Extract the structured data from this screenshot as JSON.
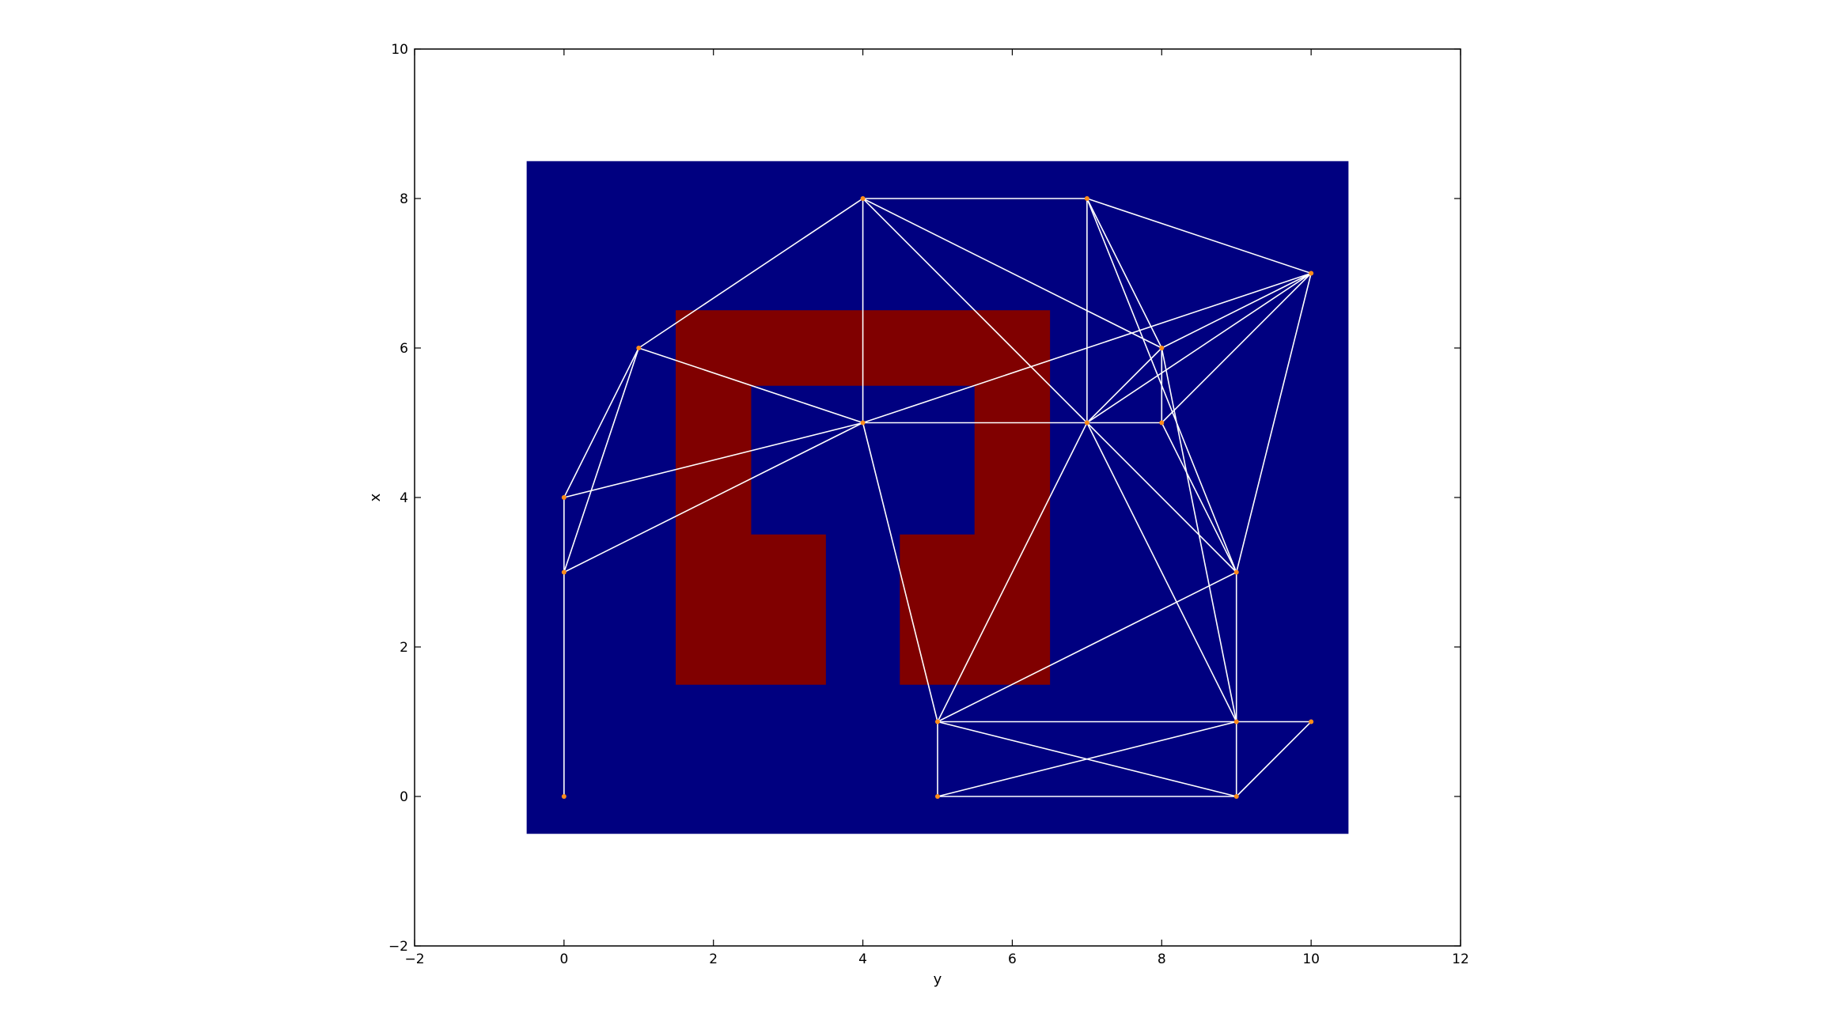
{
  "chart_data": {
    "type": "scatter",
    "title": "",
    "xlabel": "y",
    "ylabel": "x",
    "xlim": [
      -2,
      12
    ],
    "ylim": [
      -2,
      10
    ],
    "xticks": [
      -2,
      0,
      2,
      4,
      6,
      8,
      10,
      12
    ],
    "yticks": [
      -2,
      0,
      2,
      4,
      6,
      8,
      10
    ],
    "xtick_labels": [
      "−2",
      "0",
      "2",
      "4",
      "6",
      "8",
      "10",
      "12"
    ],
    "ytick_labels": [
      "−2",
      "0",
      "2",
      "4",
      "6",
      "8",
      "10"
    ],
    "grid": false,
    "legend": "none",
    "image_extent": {
      "x": [
        -0.5,
        10.5
      ],
      "y": [
        -0.5,
        8.5
      ]
    },
    "free_color": "#000080",
    "obstacle_color": "#800000",
    "edge_color": "#ffffff",
    "node_color": "#ff8c1a",
    "obstacle_cells": [
      [
        2,
        2
      ],
      [
        3,
        2
      ],
      [
        5,
        2
      ],
      [
        6,
        2
      ],
      [
        2,
        3
      ],
      [
        3,
        3
      ],
      [
        5,
        3
      ],
      [
        6,
        3
      ],
      [
        2,
        4
      ],
      [
        6,
        4
      ],
      [
        2,
        5
      ],
      [
        6,
        5
      ],
      [
        2,
        6
      ],
      [
        3,
        6
      ],
      [
        4,
        6
      ],
      [
        5,
        6
      ],
      [
        6,
        6
      ]
    ],
    "nodes": [
      [
        0,
        0
      ],
      [
        0,
        3
      ],
      [
        0,
        4
      ],
      [
        1,
        6
      ],
      [
        4,
        8
      ],
      [
        4,
        5
      ],
      [
        7,
        8
      ],
      [
        7,
        5
      ],
      [
        8,
        6
      ],
      [
        8,
        5
      ],
      [
        10,
        7
      ],
      [
        9,
        3
      ],
      [
        5,
        1
      ],
      [
        5,
        0
      ],
      [
        9,
        1
      ],
      [
        9,
        0
      ],
      [
        10,
        1
      ]
    ],
    "edges": [
      [
        0,
        1
      ],
      [
        1,
        2
      ],
      [
        1,
        3
      ],
      [
        2,
        3
      ],
      [
        1,
        5
      ],
      [
        2,
        5
      ],
      [
        3,
        4
      ],
      [
        3,
        5
      ],
      [
        4,
        5
      ],
      [
        4,
        6
      ],
      [
        4,
        7
      ],
      [
        4,
        8
      ],
      [
        5,
        7
      ],
      [
        5,
        12
      ],
      [
        5,
        10
      ],
      [
        6,
        7
      ],
      [
        6,
        8
      ],
      [
        6,
        10
      ],
      [
        6,
        11
      ],
      [
        7,
        8
      ],
      [
        7,
        9
      ],
      [
        7,
        10
      ],
      [
        7,
        11
      ],
      [
        7,
        12
      ],
      [
        7,
        14
      ],
      [
        8,
        9
      ],
      [
        8,
        10
      ],
      [
        8,
        14
      ],
      [
        9,
        10
      ],
      [
        9,
        11
      ],
      [
        10,
        11
      ],
      [
        11,
        12
      ],
      [
        11,
        14
      ],
      [
        12,
        13
      ],
      [
        12,
        14
      ],
      [
        12,
        15
      ],
      [
        13,
        14
      ],
      [
        13,
        15
      ],
      [
        14,
        15
      ],
      [
        14,
        16
      ],
      [
        15,
        16
      ]
    ]
  }
}
